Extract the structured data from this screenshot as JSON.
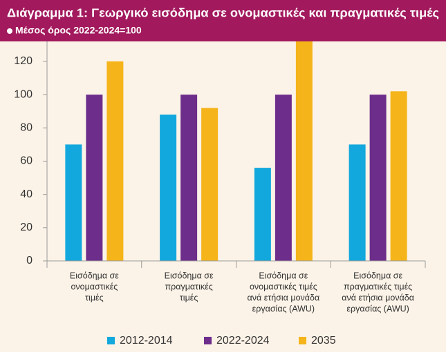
{
  "chart_data": {
    "type": "bar",
    "title": "Διάγραμμα 1: Γεωργικό εισόδημα σε ονομαστικές και πραγματικές τιμές",
    "subtitle": "Μέσος όρος 2022-2024=100",
    "categories": [
      [
        "Εισόδημα σε",
        "ονομαστικές",
        "τιμές"
      ],
      [
        "Εισόδημα σε",
        "πραγματικές",
        "τιμές"
      ],
      [
        "Εισόδημα σε",
        "ονομαστικές τιμές",
        "ανά ετήσια μονάδα",
        "εργασίας (AWU)"
      ],
      [
        "Εισόδημα σε",
        "πραγματικές τιμές",
        "ανά ετήσια μονάδα",
        "εργασίας (AWU)"
      ]
    ],
    "series": [
      {
        "name": "2012-2014",
        "color": "#12a8dd",
        "values": [
          70,
          88,
          56,
          70
        ]
      },
      {
        "name": "2022-2024",
        "color": "#6d2d8b",
        "values": [
          100,
          100,
          100,
          100
        ]
      },
      {
        "name": "2035",
        "color": "#f4b41a",
        "values": [
          120,
          92,
          135,
          102
        ]
      }
    ],
    "ylim": [
      0,
      132
    ],
    "yticks": [
      0,
      20,
      40,
      60,
      80,
      100,
      120
    ],
    "grid": false,
    "legend": "bottom"
  }
}
